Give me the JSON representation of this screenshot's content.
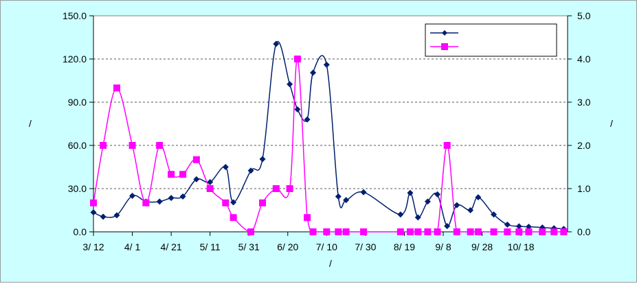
{
  "chart_data": {
    "type": "line",
    "title": "",
    "xlabel": "/",
    "ylabel_left": "/",
    "ylabel_right": "/",
    "x_tick_labels": [
      "3/ 12",
      "4/ 1",
      "4/ 21",
      "5/ 11",
      "5/ 31",
      "6/ 20",
      "7/ 10",
      "7/ 30",
      "8/ 19",
      "9/ 8",
      "9/ 28",
      "10/ 18"
    ],
    "y_left": {
      "min": 0,
      "max": 150,
      "ticks": [
        "0.0",
        "30.0",
        "60.0",
        "90.0",
        "120.0",
        "150.0"
      ]
    },
    "y_right": {
      "min": 0,
      "max": 5,
      "ticks": [
        "0.0",
        "1.0",
        "2.0",
        "3.0",
        "4.0",
        "5.0"
      ]
    },
    "grid": "horizontal dashed",
    "legend_position": "top-right",
    "series": [
      {
        "axis": "left",
        "color": "#001f6f",
        "marker": "diamond",
        "x": [
          "3/12",
          "3/17",
          "3/24",
          "4/1",
          "4/8",
          "4/15",
          "4/21",
          "4/27",
          "5/4",
          "5/11",
          "5/19",
          "5/23",
          "6/1",
          "6/7",
          "6/14",
          "6/21",
          "6/25",
          "6/30",
          "7/3",
          "7/10",
          "7/16",
          "7/20",
          "7/29",
          "8/17",
          "8/22",
          "8/26",
          "8/31",
          "9/5",
          "9/10",
          "9/15",
          "9/22",
          "9/26",
          "10/4",
          "10/11",
          "10/17",
          "10/22",
          "10/29",
          "11/4",
          "11/9"
        ],
        "values": [
          13.5,
          10.5,
          11.5,
          25.0,
          21.0,
          21.0,
          23.5,
          24.5,
          36.5,
          34.5,
          45.0,
          20.5,
          42.5,
          50.5,
          130.5,
          102.5,
          85.0,
          78.0,
          110.5,
          116.0,
          24.5,
          22.0,
          27.5,
          12.0,
          27.0,
          10.0,
          21.0,
          26.0,
          4.0,
          18.5,
          15.0,
          24.0,
          12.0,
          5.0,
          3.8,
          3.5,
          3.0,
          2.5,
          2.0
        ]
      },
      {
        "axis": "right",
        "color": "#ff00ff",
        "marker": "square",
        "x": [
          "3/12",
          "3/17",
          "3/24",
          "4/1",
          "4/8",
          "4/15",
          "4/21",
          "4/27",
          "5/4",
          "5/11",
          "5/19",
          "5/23",
          "6/1",
          "6/7",
          "6/14",
          "6/21",
          "6/25",
          "6/30",
          "7/3",
          "7/10",
          "7/16",
          "7/20",
          "7/29",
          "8/17",
          "8/22",
          "8/26",
          "8/31",
          "9/5",
          "9/10",
          "9/15",
          "9/22",
          "9/26",
          "10/4",
          "10/11",
          "10/17",
          "10/22",
          "10/29",
          "11/4",
          "11/9"
        ],
        "values": [
          0.67,
          2.0,
          3.33,
          2.0,
          0.67,
          2.0,
          1.33,
          1.33,
          1.67,
          1.0,
          0.67,
          0.33,
          0.0,
          0.67,
          1.0,
          1.0,
          4.0,
          0.33,
          0.0,
          0.0,
          0.0,
          0.0,
          0.0,
          0.0,
          0.0,
          0.0,
          0.0,
          0.0,
          2.0,
          0.0,
          0.0,
          0.0,
          0.0,
          0.0,
          0.0,
          0.0,
          0.0,
          0.0,
          0.0
        ]
      }
    ],
    "colors": {
      "chart_background": "#ccffff",
      "plot_background": "#ffffff",
      "left_series": "#001f6f",
      "right_series": "#ff00ff"
    }
  }
}
